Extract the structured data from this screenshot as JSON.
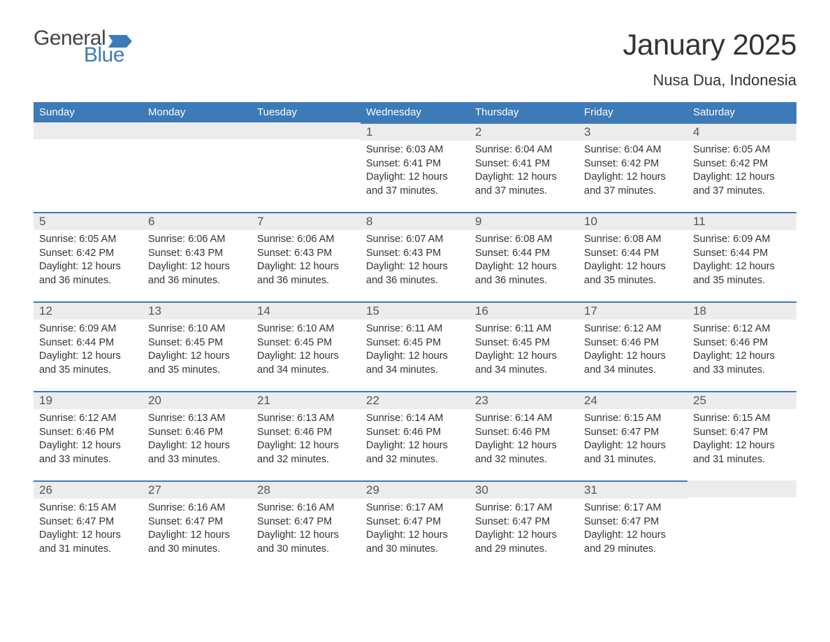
{
  "brand": {
    "word1": "General",
    "word2": "Blue"
  },
  "header": {
    "title": "January 2025",
    "location": "Nusa Dua, Indonesia"
  },
  "style": {
    "header_bg": "#3d7ab8",
    "header_fg": "#ffffff",
    "row_accent": "#3d7ab8",
    "daynum_bg": "#ececec",
    "page_bg": "#ffffff",
    "text_color": "#333333",
    "title_fontsize": 42,
    "location_fontsize": 22,
    "th_fontsize": 15,
    "cell_fontsize": 14.5
  },
  "weekdays": [
    "Sunday",
    "Monday",
    "Tuesday",
    "Wednesday",
    "Thursday",
    "Friday",
    "Saturday"
  ],
  "weeks": [
    [
      null,
      null,
      null,
      {
        "n": "1",
        "sunrise": "Sunrise: 6:03 AM",
        "sunset": "Sunset: 6:41 PM",
        "day": "Daylight: 12 hours and 37 minutes."
      },
      {
        "n": "2",
        "sunrise": "Sunrise: 6:04 AM",
        "sunset": "Sunset: 6:41 PM",
        "day": "Daylight: 12 hours and 37 minutes."
      },
      {
        "n": "3",
        "sunrise": "Sunrise: 6:04 AM",
        "sunset": "Sunset: 6:42 PM",
        "day": "Daylight: 12 hours and 37 minutes."
      },
      {
        "n": "4",
        "sunrise": "Sunrise: 6:05 AM",
        "sunset": "Sunset: 6:42 PM",
        "day": "Daylight: 12 hours and 37 minutes."
      }
    ],
    [
      {
        "n": "5",
        "sunrise": "Sunrise: 6:05 AM",
        "sunset": "Sunset: 6:42 PM",
        "day": "Daylight: 12 hours and 36 minutes."
      },
      {
        "n": "6",
        "sunrise": "Sunrise: 6:06 AM",
        "sunset": "Sunset: 6:43 PM",
        "day": "Daylight: 12 hours and 36 minutes."
      },
      {
        "n": "7",
        "sunrise": "Sunrise: 6:06 AM",
        "sunset": "Sunset: 6:43 PM",
        "day": "Daylight: 12 hours and 36 minutes."
      },
      {
        "n": "8",
        "sunrise": "Sunrise: 6:07 AM",
        "sunset": "Sunset: 6:43 PM",
        "day": "Daylight: 12 hours and 36 minutes."
      },
      {
        "n": "9",
        "sunrise": "Sunrise: 6:08 AM",
        "sunset": "Sunset: 6:44 PM",
        "day": "Daylight: 12 hours and 36 minutes."
      },
      {
        "n": "10",
        "sunrise": "Sunrise: 6:08 AM",
        "sunset": "Sunset: 6:44 PM",
        "day": "Daylight: 12 hours and 35 minutes."
      },
      {
        "n": "11",
        "sunrise": "Sunrise: 6:09 AM",
        "sunset": "Sunset: 6:44 PM",
        "day": "Daylight: 12 hours and 35 minutes."
      }
    ],
    [
      {
        "n": "12",
        "sunrise": "Sunrise: 6:09 AM",
        "sunset": "Sunset: 6:44 PM",
        "day": "Daylight: 12 hours and 35 minutes."
      },
      {
        "n": "13",
        "sunrise": "Sunrise: 6:10 AM",
        "sunset": "Sunset: 6:45 PM",
        "day": "Daylight: 12 hours and 35 minutes."
      },
      {
        "n": "14",
        "sunrise": "Sunrise: 6:10 AM",
        "sunset": "Sunset: 6:45 PM",
        "day": "Daylight: 12 hours and 34 minutes."
      },
      {
        "n": "15",
        "sunrise": "Sunrise: 6:11 AM",
        "sunset": "Sunset: 6:45 PM",
        "day": "Daylight: 12 hours and 34 minutes."
      },
      {
        "n": "16",
        "sunrise": "Sunrise: 6:11 AM",
        "sunset": "Sunset: 6:45 PM",
        "day": "Daylight: 12 hours and 34 minutes."
      },
      {
        "n": "17",
        "sunrise": "Sunrise: 6:12 AM",
        "sunset": "Sunset: 6:46 PM",
        "day": "Daylight: 12 hours and 34 minutes."
      },
      {
        "n": "18",
        "sunrise": "Sunrise: 6:12 AM",
        "sunset": "Sunset: 6:46 PM",
        "day": "Daylight: 12 hours and 33 minutes."
      }
    ],
    [
      {
        "n": "19",
        "sunrise": "Sunrise: 6:12 AM",
        "sunset": "Sunset: 6:46 PM",
        "day": "Daylight: 12 hours and 33 minutes."
      },
      {
        "n": "20",
        "sunrise": "Sunrise: 6:13 AM",
        "sunset": "Sunset: 6:46 PM",
        "day": "Daylight: 12 hours and 33 minutes."
      },
      {
        "n": "21",
        "sunrise": "Sunrise: 6:13 AM",
        "sunset": "Sunset: 6:46 PM",
        "day": "Daylight: 12 hours and 32 minutes."
      },
      {
        "n": "22",
        "sunrise": "Sunrise: 6:14 AM",
        "sunset": "Sunset: 6:46 PM",
        "day": "Daylight: 12 hours and 32 minutes."
      },
      {
        "n": "23",
        "sunrise": "Sunrise: 6:14 AM",
        "sunset": "Sunset: 6:46 PM",
        "day": "Daylight: 12 hours and 32 minutes."
      },
      {
        "n": "24",
        "sunrise": "Sunrise: 6:15 AM",
        "sunset": "Sunset: 6:47 PM",
        "day": "Daylight: 12 hours and 31 minutes."
      },
      {
        "n": "25",
        "sunrise": "Sunrise: 6:15 AM",
        "sunset": "Sunset: 6:47 PM",
        "day": "Daylight: 12 hours and 31 minutes."
      }
    ],
    [
      {
        "n": "26",
        "sunrise": "Sunrise: 6:15 AM",
        "sunset": "Sunset: 6:47 PM",
        "day": "Daylight: 12 hours and 31 minutes."
      },
      {
        "n": "27",
        "sunrise": "Sunrise: 6:16 AM",
        "sunset": "Sunset: 6:47 PM",
        "day": "Daylight: 12 hours and 30 minutes."
      },
      {
        "n": "28",
        "sunrise": "Sunrise: 6:16 AM",
        "sunset": "Sunset: 6:47 PM",
        "day": "Daylight: 12 hours and 30 minutes."
      },
      {
        "n": "29",
        "sunrise": "Sunrise: 6:17 AM",
        "sunset": "Sunset: 6:47 PM",
        "day": "Daylight: 12 hours and 30 minutes."
      },
      {
        "n": "30",
        "sunrise": "Sunrise: 6:17 AM",
        "sunset": "Sunset: 6:47 PM",
        "day": "Daylight: 12 hours and 29 minutes."
      },
      {
        "n": "31",
        "sunrise": "Sunrise: 6:17 AM",
        "sunset": "Sunset: 6:47 PM",
        "day": "Daylight: 12 hours and 29 minutes."
      },
      null
    ]
  ]
}
